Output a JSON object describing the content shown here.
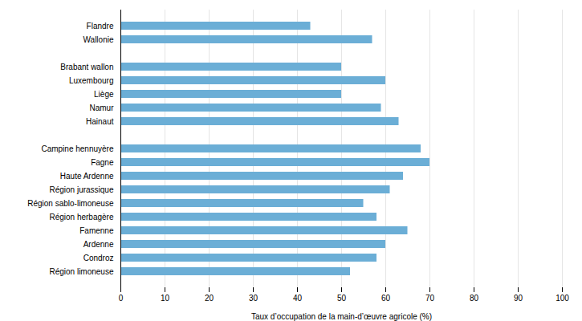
{
  "chart_data": {
    "type": "bar",
    "orientation": "horizontal",
    "categories": [
      "Flandre",
      "Wallonie",
      null,
      "Brabant wallon",
      "Luxembourg",
      "Liège",
      "Namur",
      "Hainaut",
      null,
      "Campine hennuyère",
      "Fagne",
      "Haute Ardenne",
      "Région jurassique",
      "Région sablo-limoneuse",
      "Région herbagère",
      "Famenne",
      "Ardenne",
      "Condroz",
      "Région limoneuse"
    ],
    "values": [
      43,
      57,
      0,
      50,
      60,
      50,
      59,
      63,
      0,
      68,
      70,
      64,
      61,
      55,
      58,
      65,
      60,
      58,
      52
    ],
    "color": "#6baed6",
    "xlabel": "Taux d’occupation de la main-d’œuvre agricole (%)",
    "xlim": [
      0,
      100
    ],
    "xticks": [
      0,
      10,
      20,
      30,
      40,
      50,
      60,
      70,
      80,
      90,
      100
    ],
    "grid": true
  }
}
